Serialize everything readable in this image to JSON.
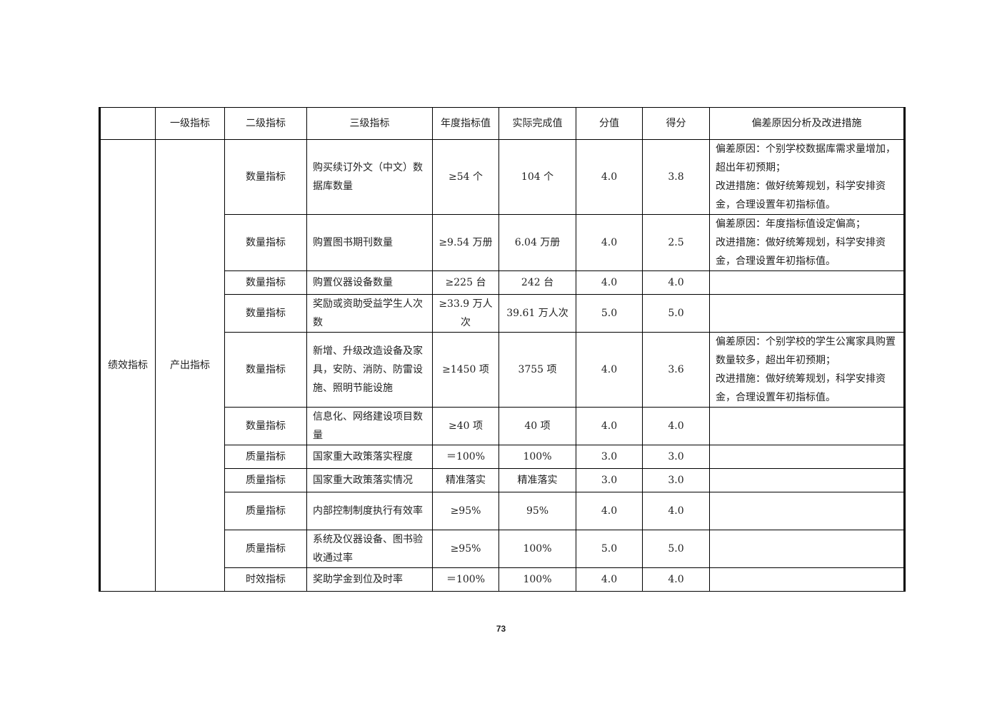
{
  "table": {
    "headers": [
      "",
      "一级指标",
      "二级指标",
      "三级指标",
      "年度指标值",
      "实际完成值",
      "分值",
      "得分",
      "偏差原因分析及改进措施"
    ],
    "group_level0": "绩效指标",
    "group_level1": "产出指标",
    "rows": [
      {
        "level2": "数量指标",
        "level3": "购买续订外文（中文）数据库数量",
        "target": "≥54 个",
        "actual": "104 个",
        "weight": "4.0",
        "score": "3.8",
        "analysis": "偏差原因：个别学校数据库需求量增加，超出年初预期；\n改进措施：做好统筹规划，科学安排资金，合理设置年初指标值。"
      },
      {
        "level2": "数量指标",
        "level3": "购置图书期刊数量",
        "target": "≥9.54 万册",
        "actual": "6.04 万册",
        "weight": "4.0",
        "score": "2.5",
        "analysis": "偏差原因：年度指标值设定偏高；\n改进措施：做好统筹规划，科学安排资金，合理设置年初指标值。"
      },
      {
        "level2": "数量指标",
        "level3": "购置仪器设备数量",
        "target": "≥225 台",
        "actual": "242 台",
        "weight": "4.0",
        "score": "4.0",
        "analysis": ""
      },
      {
        "level2": "数量指标",
        "level3": "奖励或资助受益学生人次数",
        "target": "≥33.9 万人次",
        "actual": "39.61 万人次",
        "weight": "5.0",
        "score": "5.0",
        "analysis": ""
      },
      {
        "level2": "数量指标",
        "level3": "新增、升级改造设备及家具，安防、消防、防雷设施、照明节能设施",
        "target": "≥1450 项",
        "actual": "3755 项",
        "weight": "4.0",
        "score": "3.6",
        "analysis": "偏差原因：个别学校的学生公寓家具购置数量较多，超出年初预期；\n改进措施：做好统筹规划，科学安排资金，合理设置年初指标值。"
      },
      {
        "level2": "数量指标",
        "level3": "信息化、网络建设项目数量",
        "target": "≥40 项",
        "actual": "40 项",
        "weight": "4.0",
        "score": "4.0",
        "analysis": ""
      },
      {
        "level2": "质量指标",
        "level3": "国家重大政策落实程度",
        "target": "＝100%",
        "actual": "100%",
        "weight": "3.0",
        "score": "3.0",
        "analysis": ""
      },
      {
        "level2": "质量指标",
        "level3": "国家重大政策落实情况",
        "target": "精准落实",
        "actual": "精准落实",
        "weight": "3.0",
        "score": "3.0",
        "analysis": ""
      },
      {
        "level2": "质量指标",
        "level3": "内部控制制度执行有效率",
        "target": "≥95%",
        "actual": "95%",
        "weight": "4.0",
        "score": "4.0",
        "analysis": ""
      },
      {
        "level2": "质量指标",
        "level3": "系统及仪器设备、图书验收通过率",
        "target": "≥95%",
        "actual": "100%",
        "weight": "5.0",
        "score": "5.0",
        "analysis": ""
      },
      {
        "level2": "时效指标",
        "level3": "奖助学金到位及时率",
        "target": "＝100%",
        "actual": "100%",
        "weight": "4.0",
        "score": "4.0",
        "analysis": ""
      }
    ]
  },
  "page_number": "73"
}
